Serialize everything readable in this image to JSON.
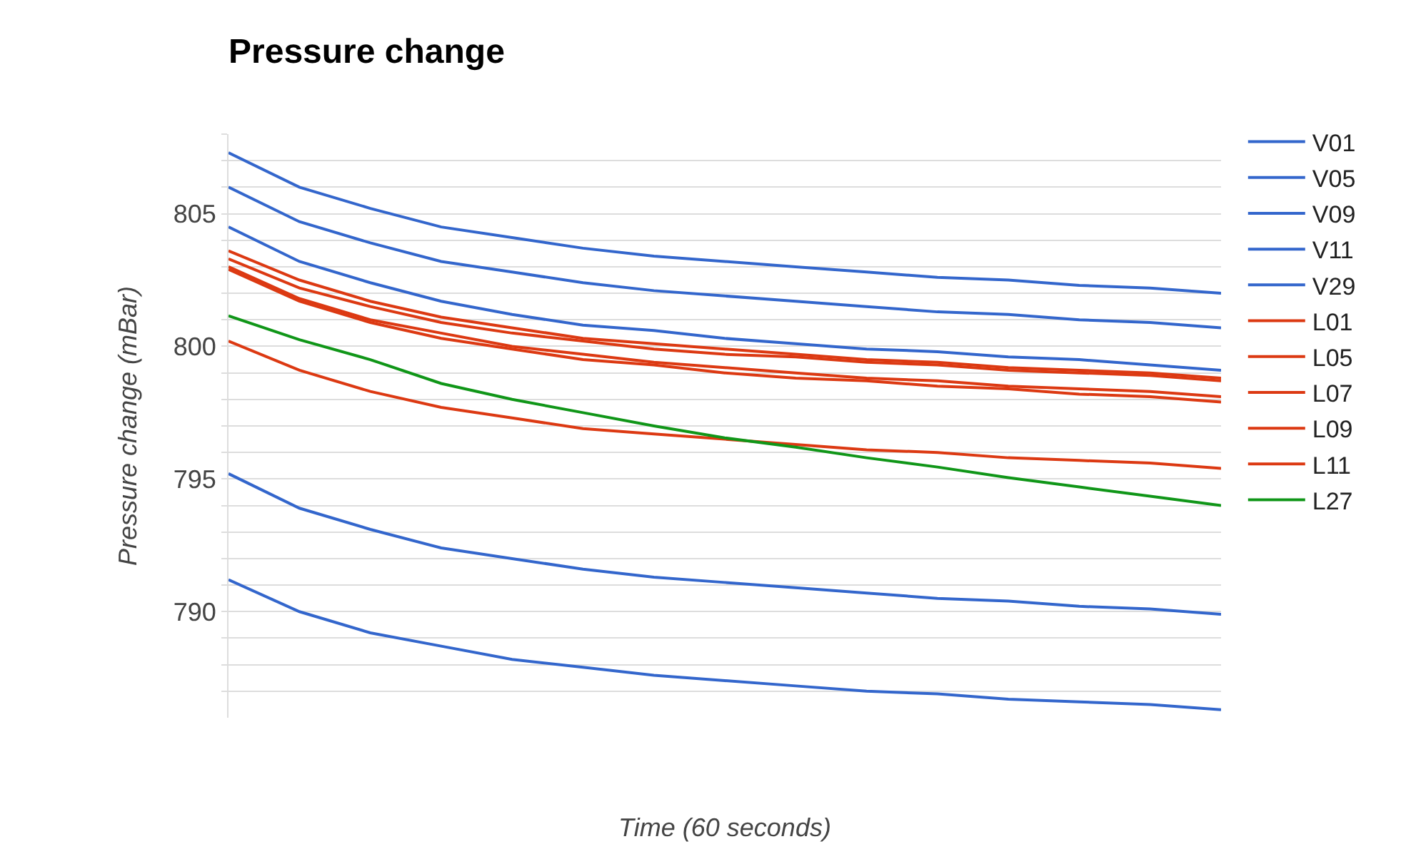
{
  "chart_data": {
    "type": "line",
    "title": "Pressure change",
    "xlabel": "Time (60 seconds)",
    "ylabel": "Pressure change (mBar)",
    "categories": [
      null,
      null,
      null,
      null,
      null,
      null,
      null,
      null,
      null,
      null,
      null,
      null,
      null,
      null,
      null
    ],
    "series": [
      {
        "name": "V01",
        "color": "#3366cc",
        "values": [
          807.3,
          806.0,
          805.2,
          804.5,
          804.1,
          803.7,
          803.4,
          803.2,
          803.0,
          802.8,
          802.6,
          802.5,
          802.3,
          802.2,
          802.0
        ]
      },
      {
        "name": "V05",
        "color": "#3366cc",
        "values": [
          806.0,
          804.7,
          803.9,
          803.2,
          802.8,
          802.4,
          802.1,
          801.9,
          801.7,
          801.5,
          801.3,
          801.2,
          801.0,
          800.9,
          800.7
        ]
      },
      {
        "name": "V09",
        "color": "#3366cc",
        "values": [
          804.5,
          803.2,
          802.4,
          801.7,
          801.2,
          800.8,
          800.6,
          800.3,
          800.1,
          799.9,
          799.8,
          799.6,
          799.5,
          799.3,
          799.1
        ]
      },
      {
        "name": "V11",
        "color": "#3366cc",
        "values": [
          795.2,
          793.9,
          793.1,
          792.4,
          792.0,
          791.6,
          791.3,
          791.1,
          790.9,
          790.7,
          790.5,
          790.4,
          790.2,
          790.1,
          789.9
        ]
      },
      {
        "name": "V29",
        "color": "#3366cc",
        "values": [
          791.2,
          790.0,
          789.2,
          788.7,
          788.2,
          787.9,
          787.6,
          787.4,
          787.2,
          787.0,
          786.9,
          786.7,
          786.6,
          786.5,
          786.3
        ]
      },
      {
        "name": "L01",
        "color": "#dc3912",
        "values": [
          803.6,
          802.5,
          801.7,
          801.1,
          800.7,
          800.3,
          800.1,
          799.9,
          799.7,
          799.5,
          799.4,
          799.2,
          799.1,
          799.0,
          798.8
        ]
      },
      {
        "name": "L05",
        "color": "#dc3912",
        "values": [
          803.3,
          802.2,
          801.5,
          800.9,
          800.5,
          800.2,
          799.9,
          799.7,
          799.6,
          799.4,
          799.3,
          799.1,
          799.0,
          798.9,
          798.7
        ]
      },
      {
        "name": "L07",
        "color": "#dc3912",
        "values": [
          800.2,
          799.1,
          798.3,
          797.7,
          797.3,
          796.9,
          796.7,
          796.5,
          796.3,
          796.1,
          796.0,
          795.8,
          795.7,
          795.6,
          795.4
        ]
      },
      {
        "name": "L09",
        "color": "#dc3912",
        "values": [
          803.0,
          801.8,
          801.0,
          800.5,
          800.0,
          799.7,
          799.4,
          799.2,
          799.0,
          798.8,
          798.7,
          798.5,
          798.4,
          798.3,
          798.1
        ]
      },
      {
        "name": "L11",
        "color": "#dc3912",
        "values": [
          802.9,
          801.7,
          800.9,
          800.3,
          799.9,
          799.5,
          799.3,
          799.0,
          798.8,
          798.7,
          798.5,
          798.4,
          798.2,
          798.1,
          797.9
        ]
      },
      {
        "name": "L27",
        "color": "#109618",
        "values": [
          801.15,
          800.25,
          799.5,
          798.6,
          798.0,
          797.5,
          797.0,
          796.55,
          796.2,
          795.8,
          795.45,
          795.05,
          794.7,
          794.35,
          794.0
        ]
      }
    ],
    "ylim": [
      786,
      808
    ],
    "yticks": [
      {
        "value": 787,
        "label": null
      },
      {
        "value": 788,
        "label": null
      },
      {
        "value": 789,
        "label": null
      },
      790,
      {
        "value": 791,
        "label": null
      },
      {
        "value": 792,
        "label": null
      },
      {
        "value": 793,
        "label": null
      },
      {
        "value": 794,
        "label": null
      },
      795,
      {
        "value": 796,
        "label": null
      },
      {
        "value": 797,
        "label": null
      },
      {
        "value": 798,
        "label": null
      },
      {
        "value": 799,
        "label": null
      },
      800,
      {
        "value": 801,
        "label": null
      },
      {
        "value": 802,
        "label": null
      },
      {
        "value": 803,
        "label": null
      },
      {
        "value": 804,
        "label": null
      },
      805,
      {
        "value": 806,
        "label": null
      },
      {
        "value": 807,
        "label": null
      },
      {
        "value": 808,
        "label": null
      }
    ],
    "grid": "y",
    "legend": "right",
    "tick_labels": "y",
    "marker": "none",
    "line_style": "solid"
  }
}
